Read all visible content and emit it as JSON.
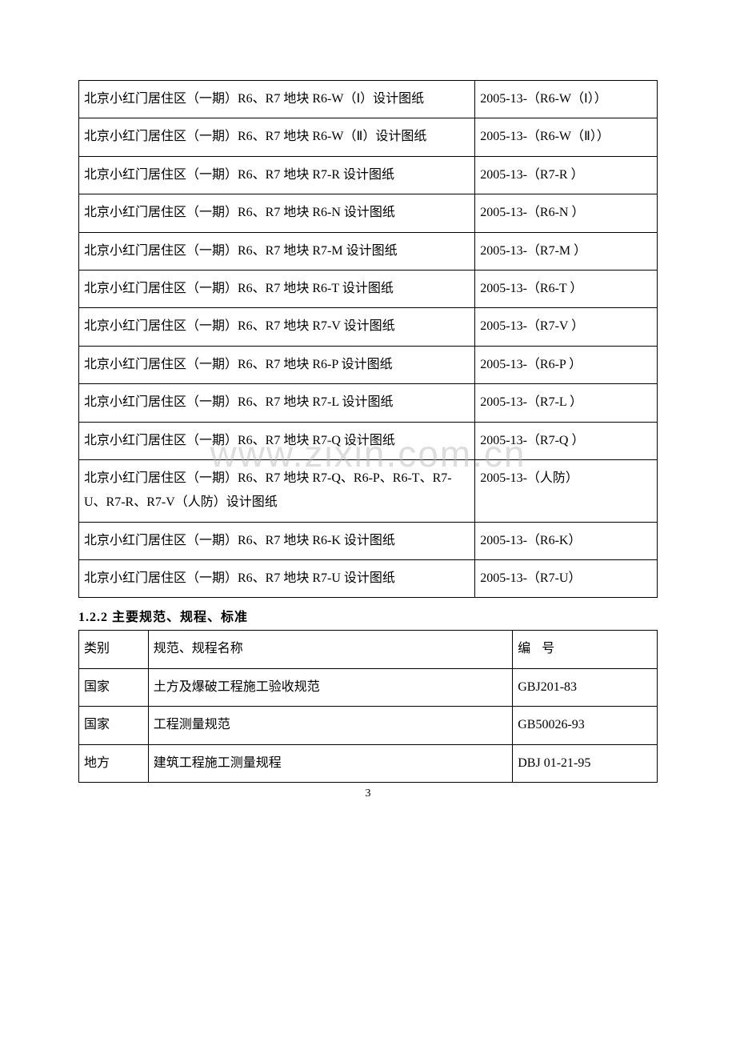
{
  "watermark": "www.zixin.com.cn",
  "page_number": "3",
  "table1": {
    "rows": [
      {
        "name": "北京小红门居住区（一期）R6、R7 地块 R6-W（Ⅰ）设计图纸",
        "code": "2005-13-（R6-W（Ⅰ））"
      },
      {
        "name": "北京小红门居住区（一期）R6、R7 地块 R6-W（Ⅱ）设计图纸",
        "code": "2005-13-（R6-W（Ⅱ））"
      },
      {
        "name": "北京小红门居住区（一期）R6、R7 地块 R7-R 设计图纸",
        "code": "2005-13-（R7-R ）"
      },
      {
        "name": "北京小红门居住区（一期）R6、R7 地块 R6-N 设计图纸",
        "code": "2005-13-（R6-N ）"
      },
      {
        "name": "北京小红门居住区（一期）R6、R7 地块 R7-M 设计图纸",
        "code": "2005-13-（R7-M ）"
      },
      {
        "name": "北京小红门居住区（一期）R6、R7 地块 R6-T 设计图纸",
        "code": "2005-13-（R6-T ）"
      },
      {
        "name": "北京小红门居住区（一期）R6、R7 地块 R7-V 设计图纸",
        "code": "2005-13-（R7-V ）"
      },
      {
        "name": "北京小红门居住区（一期）R6、R7 地块 R6-P 设计图纸",
        "code": "2005-13-（R6-P ）"
      },
      {
        "name": "北京小红门居住区（一期）R6、R7 地块 R7-L 设计图纸",
        "code": "2005-13-（R7-L ）"
      },
      {
        "name": "北京小红门居住区（一期）R6、R7 地块 R7-Q 设计图纸",
        "code": "2005-13-（R7-Q ）"
      },
      {
        "name": "北京小红门居住区（一期）R6、R7 地块 R7-Q、R6-P、R6-T、R7-U、R7-R、R7-V（人防）设计图纸",
        "code": "2005-13-（人防）"
      },
      {
        "name": "北京小红门居住区（一期）R6、R7 地块 R6-K 设计图纸",
        "code": "2005-13-（R6-K）"
      },
      {
        "name": "北京小红门居住区（一期）R6、R7 地块 R7-U 设计图纸",
        "code": "2005-13-（R7-U）"
      }
    ]
  },
  "section_heading": "1.2.2 主要规范、规程、标准",
  "table2": {
    "header": {
      "cat": "类别",
      "name": "规范、规程名称",
      "code_label": "编",
      "code_label2": "号"
    },
    "rows": [
      {
        "cat": "国家",
        "name": "土方及爆破工程施工验收规范",
        "code": "GBJ201-83"
      },
      {
        "cat": "国家",
        "name": "工程测量规范",
        "code": "GB50026-93"
      },
      {
        "cat": "地方",
        "name": "建筑工程施工测量规程",
        "code": "DBJ 01-21-95"
      }
    ]
  }
}
